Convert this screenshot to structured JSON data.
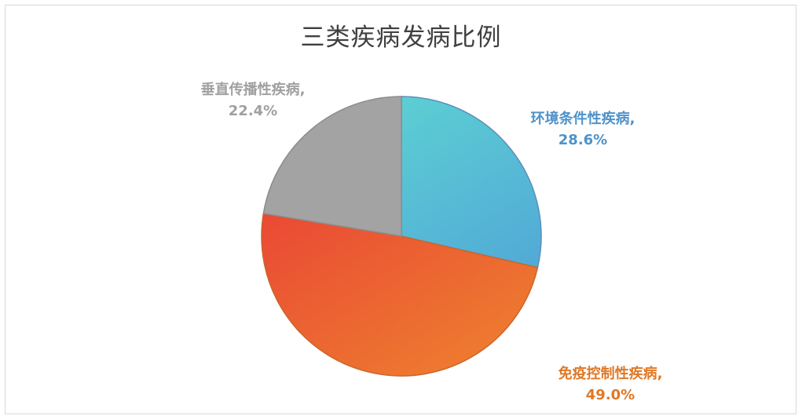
{
  "chart_data": {
    "type": "pie",
    "title": "三类疾病发病比例",
    "start_angle_deg": 0,
    "direction": "clockwise",
    "slices": [
      {
        "name": "环境条件性疾病",
        "value": 28.6,
        "label": "28.6%",
        "colors": [
          "#5ed6d2",
          "#4f9ed8"
        ],
        "stroke": "#5a8fb8",
        "label_color": "#4e92c9",
        "label_position": "top-right"
      },
      {
        "name": "免疫控制性疾病",
        "value": 49.0,
        "label": "49.0%",
        "colors": [
          "#e83a36",
          "#ee7e2f"
        ],
        "stroke": "#c9662a",
        "label_color": "#e07826",
        "label_position": "bottom-right"
      },
      {
        "name": "垂直传播性疾病",
        "value": 22.4,
        "label": "22.4%",
        "colors": [
          "#a3a3a3",
          "#a3a3a3"
        ],
        "stroke": "#8c8c8c",
        "label_color": "#a0a0a0",
        "label_position": "top-left"
      }
    ],
    "legend": "none"
  }
}
